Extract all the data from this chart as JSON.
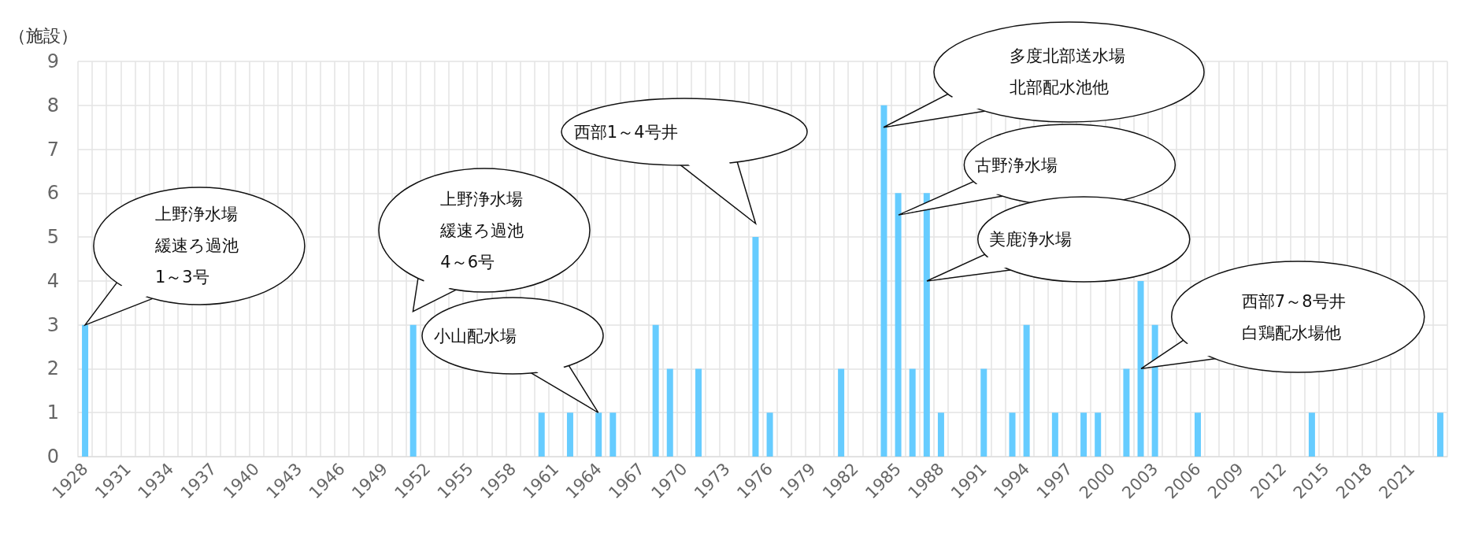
{
  "chart_data": {
    "type": "bar",
    "ylabel": "（施設）",
    "categories": [
      "1928",
      null,
      null,
      "1931",
      null,
      null,
      "1934",
      null,
      null,
      "1937",
      null,
      null,
      "1940",
      null,
      null,
      "1943",
      null,
      null,
      "1946",
      null,
      null,
      "1949",
      null,
      null,
      "1952",
      null,
      null,
      "1955",
      null,
      null,
      "1958",
      null,
      null,
      "1961",
      null,
      null,
      "1964",
      null,
      null,
      "1967",
      null,
      null,
      "1970",
      null,
      null,
      "1973",
      null,
      null,
      "1976",
      null,
      null,
      "1979",
      null,
      null,
      "1982",
      null,
      null,
      "1985",
      null,
      null,
      "1988",
      null,
      null,
      "1991",
      null,
      null,
      "1994",
      null,
      null,
      "1997",
      null,
      null,
      "2000",
      null,
      null,
      "2003",
      null,
      null,
      "2006",
      null,
      null,
      "2009",
      null,
      null,
      "2012",
      null,
      null,
      "2015",
      null,
      null,
      "2018",
      null,
      null,
      "2021",
      null,
      null
    ],
    "values": [
      3,
      0,
      0,
      0,
      0,
      0,
      0,
      0,
      0,
      0,
      0,
      0,
      0,
      0,
      0,
      0,
      0,
      0,
      0,
      0,
      0,
      0,
      0,
      3,
      0,
      0,
      0,
      0,
      0,
      0,
      0,
      0,
      1,
      0,
      1,
      0,
      1,
      1,
      0,
      0,
      3,
      2,
      0,
      2,
      0,
      0,
      0,
      5,
      1,
      0,
      0,
      0,
      0,
      2,
      0,
      0,
      8,
      6,
      2,
      6,
      1,
      0,
      0,
      2,
      0,
      1,
      3,
      0,
      1,
      0,
      1,
      1,
      0,
      2,
      4,
      3,
      0,
      0,
      1,
      0,
      0,
      0,
      0,
      0,
      0,
      0,
      1,
      0,
      0,
      0,
      0,
      0,
      0,
      0,
      0,
      1
    ],
    "color": "#66ccff",
    "ylim": [
      0,
      9
    ],
    "yticks": [
      0,
      1,
      2,
      3,
      4,
      5,
      6,
      7,
      8,
      9
    ],
    "grid": true,
    "annotations": [
      "上野浄水場緩速ろ過池1～3号",
      "上野浄水場緩速ろ過池4～6号",
      "小山配水場",
      "西部1～4号井",
      "多度北部送水場北部配水池他",
      "古野浄水場",
      "美鹿浄水場",
      "西部7～8号井白鶏配水場他"
    ]
  }
}
